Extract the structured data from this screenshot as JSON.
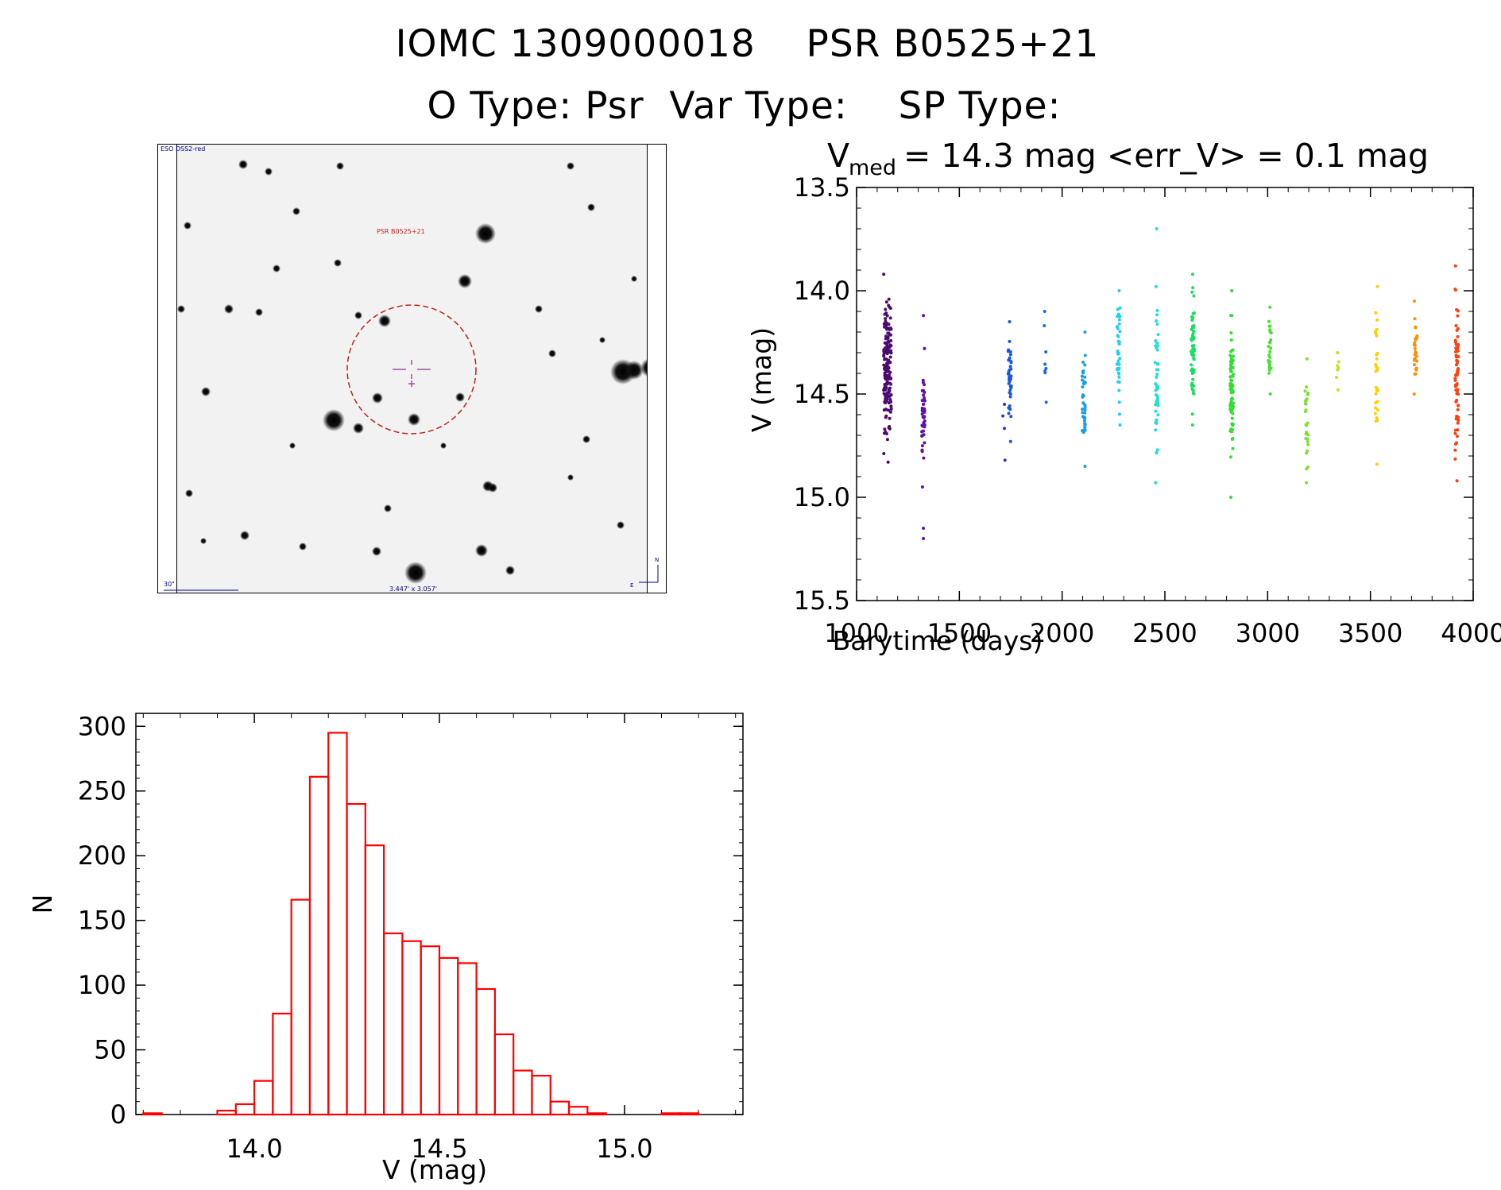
{
  "header": {
    "title_line1": "IOMC 1309000018    PSR B0525+21",
    "title_line2": "O Type: Psr  Var Type:    SP Type:"
  },
  "image_panel": {
    "survey_label": "ESO DSS2-red",
    "target_label": "PSR B0525+21",
    "scale_label": "30\"",
    "size_label": "3.447' x 3.057'",
    "compass_n": "N",
    "compass_e": "E"
  },
  "colors": {
    "hist": "#ff0000",
    "circle": "#c02020",
    "crosshair": "#a050a0",
    "image_labels": "#000090"
  },
  "chart_data": [
    {
      "type": "scatter",
      "title_main": "V",
      "title_sub": "med",
      "title_rest": " = 14.3 mag <err_V> = 0.1 mag",
      "xlabel": "Barytime (days)",
      "ylabel": "V (mag)",
      "xlim": [
        1000,
        4000
      ],
      "ylim": [
        15.5,
        13.5
      ],
      "y_inverted": true,
      "xticks": [
        "1000",
        "1500",
        "2000",
        "2500",
        "3000",
        "3500",
        "4000"
      ],
      "yticks": [
        "13.5",
        "14.0",
        "14.5",
        "15.0",
        "15.5"
      ],
      "groups": [
        {
          "x": 1150,
          "color": "#4b0b70",
          "ymin": 13.92,
          "ymax": 14.83,
          "n": 170
        },
        {
          "x": 1325,
          "color": "#5b14a8",
          "ymin": 14.28,
          "ymax": 14.95,
          "n": 45,
          "extra": [
            14.12,
            15.15,
            15.2
          ]
        },
        {
          "x": 1715,
          "color": "#3333c8",
          "ymin": 14.55,
          "ymax": 14.82,
          "n": 4
        },
        {
          "x": 1745,
          "color": "#1a55e0",
          "ymin": 14.15,
          "ymax": 14.73,
          "n": 40
        },
        {
          "x": 1915,
          "color": "#1a6ae6",
          "ymin": 14.1,
          "ymax": 14.54,
          "n": 8
        },
        {
          "x": 2105,
          "color": "#18a0e0",
          "ymin": 14.2,
          "ymax": 14.85,
          "n": 42
        },
        {
          "x": 2275,
          "color": "#22d0ee",
          "ymin": 14.0,
          "ymax": 14.65,
          "n": 40
        },
        {
          "x": 2460,
          "color": "#22e0d0",
          "ymin": 13.98,
          "ymax": 14.93,
          "n": 50,
          "extra": [
            13.7
          ]
        },
        {
          "x": 2635,
          "color": "#18e060",
          "ymin": 13.92,
          "ymax": 14.65,
          "n": 60
        },
        {
          "x": 2825,
          "color": "#30e030",
          "ymin": 14.0,
          "ymax": 15.0,
          "n": 80
        },
        {
          "x": 3010,
          "color": "#48e030",
          "ymin": 14.08,
          "ymax": 14.5,
          "n": 25
        },
        {
          "x": 3190,
          "color": "#80e030",
          "ymin": 14.33,
          "ymax": 14.93,
          "n": 28
        },
        {
          "x": 3340,
          "color": "#c8e020",
          "ymin": 14.3,
          "ymax": 14.48,
          "n": 8
        },
        {
          "x": 3530,
          "color": "#ffd000",
          "ymin": 13.98,
          "ymax": 14.84,
          "n": 30
        },
        {
          "x": 3720,
          "color": "#ff9000",
          "ymin": 14.05,
          "ymax": 14.5,
          "n": 30
        },
        {
          "x": 3920,
          "color": "#ff4010",
          "ymin": 13.88,
          "ymax": 14.92,
          "n": 70
        }
      ]
    },
    {
      "type": "bar",
      "xlabel": "V (mag)",
      "ylabel": "N",
      "xlim": [
        13.68,
        15.32
      ],
      "ylim": [
        0,
        310
      ],
      "xticks": [
        "14.0",
        "14.5",
        "15.0"
      ],
      "yticks": [
        "0",
        "50",
        "100",
        "150",
        "200",
        "250",
        "300"
      ],
      "bin_width": 0.05,
      "bin_start": 13.7,
      "values": [
        1,
        0,
        0,
        0,
        3,
        8,
        26,
        78,
        166,
        261,
        295,
        240,
        208,
        140,
        134,
        130,
        121,
        117,
        97,
        62,
        34,
        30,
        10,
        6,
        1,
        0,
        0,
        0,
        1,
        1
      ]
    }
  ]
}
